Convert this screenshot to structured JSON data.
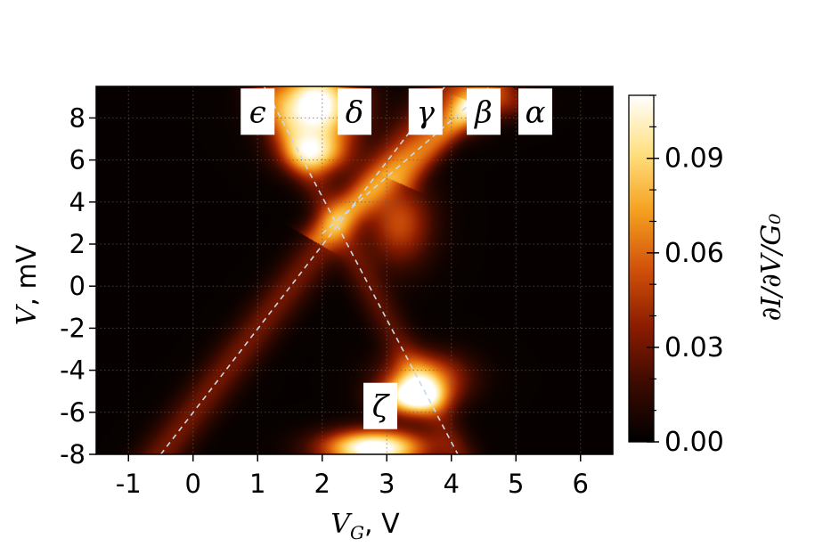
{
  "chart_data": {
    "type": "heatmap",
    "xlabel": {
      "var": "V",
      "sub": "G",
      "unit": ", V"
    },
    "ylabel": {
      "var": "V",
      "unit": ", mV"
    },
    "xlim": [
      -1.5,
      6.5
    ],
    "ylim": [
      -8,
      9.5
    ],
    "x_ticks": [
      "-1",
      "0",
      "1",
      "2",
      "3",
      "4",
      "5",
      "6"
    ],
    "y_ticks": [
      "-8",
      "-6",
      "-4",
      "-2",
      "0",
      "2",
      "4",
      "6",
      "8"
    ],
    "colorbar": {
      "label": "∂I/∂V/G₀",
      "range": [
        0.0,
        0.11
      ],
      "ticks": [
        "0.00",
        "0.03",
        "0.06",
        "0.09"
      ],
      "colormap": [
        "#000000",
        "#3b0a00",
        "#8c1c00",
        "#d2520a",
        "#f5a020",
        "#ffe080",
        "#ffffff"
      ]
    },
    "grid": "dotted",
    "annotations": [
      {
        "label": "ϵ",
        "x": 1.0,
        "y": 8.3
      },
      {
        "label": "δ",
        "x": 2.5,
        "y": 8.3
      },
      {
        "label": "γ",
        "x": 3.6,
        "y": 8.3
      },
      {
        "label": "β",
        "x": 4.5,
        "y": 8.3
      },
      {
        "label": "α",
        "x": 5.3,
        "y": 8.3
      },
      {
        "label": "ζ",
        "x": 2.9,
        "y": -5.7
      }
    ],
    "guide_lines": [
      {
        "name": "epsilon-zeta",
        "x": [
          1.1,
          4.1
        ],
        "y": [
          9.5,
          -8.0
        ]
      },
      {
        "name": "delta",
        "x": [
          -0.5,
          3.9
        ],
        "y": [
          -8.0,
          9.5
        ]
      },
      {
        "name": "gamma",
        "x": [
          2.0,
          4.6
        ],
        "y": [
          2.5,
          9.5
        ]
      }
    ],
    "features": [
      {
        "x": 1.9,
        "y": 8.6,
        "sx": 0.45,
        "sy": 1.3,
        "amp": 0.12
      },
      {
        "x": 1.9,
        "y": 6.3,
        "sx": 0.35,
        "sy": 0.7,
        "amp": 0.07
      },
      {
        "x": 2.8,
        "y": -7.7,
        "sx": 0.55,
        "sy": 0.6,
        "amp": 0.12
      },
      {
        "x": 3.4,
        "y": -5.3,
        "sx": 0.35,
        "sy": 0.6,
        "amp": 0.1
      },
      {
        "x": 4.3,
        "y": 8.6,
        "sx": 0.25,
        "sy": 0.8,
        "amp": 0.045
      },
      {
        "x": 4.9,
        "y": 8.8,
        "sx": 0.3,
        "sy": 0.6,
        "amp": 0.03
      },
      {
        "x": 3.2,
        "y": 3.0,
        "sx": 0.35,
        "sy": 1.4,
        "amp": 0.05
      },
      {
        "x": 3.6,
        "y": -4.3,
        "sx": 0.45,
        "sy": 0.8,
        "amp": 0.06
      }
    ],
    "ridges": [
      {
        "x0": -0.5,
        "y0": -8.0,
        "x1": 3.9,
        "y1": 9.5,
        "w": 0.25,
        "amp": 0.028
      },
      {
        "x0": 2.0,
        "y0": 2.5,
        "x1": 4.6,
        "y1": 9.5,
        "w": 0.22,
        "amp": 0.035
      },
      {
        "x0": 3.3,
        "y0": 5.0,
        "x1": 4.3,
        "y1": 8.5,
        "w": 0.18,
        "amp": 0.025
      },
      {
        "x0": 1.1,
        "y0": 9.5,
        "x1": 4.1,
        "y1": -8.0,
        "w": 0.2,
        "amp": 0.022
      }
    ]
  }
}
